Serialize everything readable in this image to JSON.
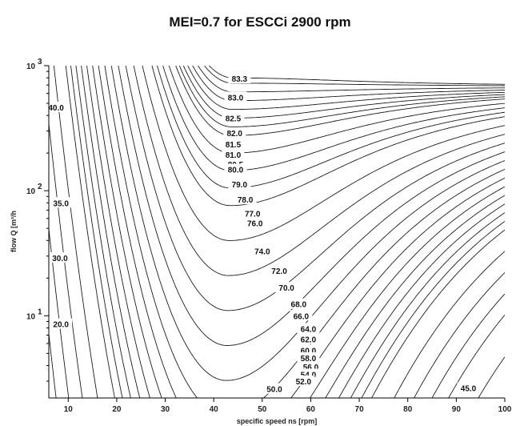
{
  "chart_data": {
    "type": "contour",
    "title": "MEI=0.7 for ESCCi 2900 rpm",
    "xlabel": "specific speed ns [rpm]",
    "ylabel": "flow Q [m³/h",
    "xlim": [
      6,
      100
    ],
    "ylim": [
      2.2,
      1000
    ],
    "y_scale": "log",
    "x_ticks": [
      10,
      20,
      30,
      40,
      50,
      60,
      70,
      80,
      90,
      100
    ],
    "y_ticks": [
      {
        "value": 10,
        "base": "10",
        "exp": "1"
      },
      {
        "value": 100,
        "base": "10",
        "exp": "2"
      },
      {
        "value": 1000,
        "base": "10",
        "exp": "3"
      }
    ],
    "contour_levels": [
      83.3,
      83.0,
      82.5,
      82.0,
      81.5,
      81.0,
      80.5,
      80.0,
      79.0,
      78.0,
      77.0,
      76.0,
      74.0,
      72.0,
      70.0,
      68.0,
      66.0,
      64.0,
      62.0,
      60.0,
      58.0,
      56.0,
      54.0,
      52.0,
      50.0,
      45.0,
      40.0,
      35.0,
      30.0,
      20.0
    ],
    "labels": [
      {
        "text": "83.3",
        "x": 45.3,
        "y": 790
      },
      {
        "text": "83.0",
        "x": 44.5,
        "y": 560
      },
      {
        "text": "82.5",
        "x": 44.0,
        "y": 380
      },
      {
        "text": "82.0",
        "x": 44.3,
        "y": 290
      },
      {
        "text": "81.5",
        "x": 44.0,
        "y": 235
      },
      {
        "text": "81.0",
        "x": 44.0,
        "y": 195
      },
      {
        "text": "80.5",
        "x": 44.5,
        "y": 163
      },
      {
        "text": "80.0",
        "x": 44.5,
        "y": 148
      },
      {
        "text": "79.0",
        "x": 45.3,
        "y": 113
      },
      {
        "text": "78.0",
        "x": 46.5,
        "y": 85
      },
      {
        "text": "77.0",
        "x": 48.0,
        "y": 66
      },
      {
        "text": "76.0",
        "x": 48.5,
        "y": 55
      },
      {
        "text": "74.0",
        "x": 50.0,
        "y": 33
      },
      {
        "text": "72.0",
        "x": 53.5,
        "y": 23
      },
      {
        "text": "70.0",
        "x": 55.0,
        "y": 16.8
      },
      {
        "text": "68.0",
        "x": 57.5,
        "y": 12.4
      },
      {
        "text": "66.0",
        "x": 58.0,
        "y": 10.0
      },
      {
        "text": "64.0",
        "x": 59.5,
        "y": 7.9
      },
      {
        "text": "62.0",
        "x": 59.5,
        "y": 6.5
      },
      {
        "text": "60.0",
        "x": 59.5,
        "y": 5.3
      },
      {
        "text": "58.0",
        "x": 59.5,
        "y": 4.6
      },
      {
        "text": "56.0",
        "x": 60.0,
        "y": 3.9
      },
      {
        "text": "54.0",
        "x": 59.5,
        "y": 3.4
      },
      {
        "text": "52.0",
        "x": 58.5,
        "y": 3.0
      },
      {
        "text": "50.0",
        "x": 52.5,
        "y": 2.6
      },
      {
        "text": "45.0",
        "x": 92.5,
        "y": 2.65
      },
      {
        "text": "40.0",
        "x": 7.5,
        "y": 465
      },
      {
        "text": "35.0",
        "x": 8.5,
        "y": 80
      },
      {
        "text": "30.0",
        "x": 8.3,
        "y": 29
      },
      {
        "text": "20.0",
        "x": 8.5,
        "y": 8.6
      }
    ]
  }
}
